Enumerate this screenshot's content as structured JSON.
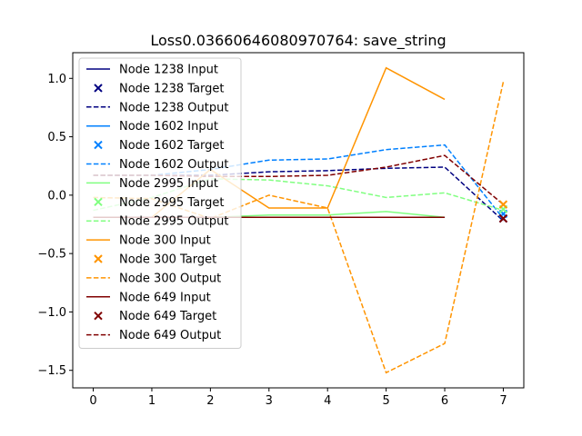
{
  "chart_data": {
    "type": "line",
    "title": "Loss0.03660646080970764: save_string",
    "xlabel": "",
    "ylabel": "",
    "xlim": [
      -0.35,
      7.35
    ],
    "ylim": [
      -1.65,
      1.22
    ],
    "xticks": [
      0,
      1,
      2,
      3,
      4,
      5,
      6,
      7
    ],
    "yticks": [
      -1.5,
      -1.0,
      -0.5,
      0.0,
      0.5,
      1.0
    ],
    "ytick_labels": [
      "−1.5",
      "−1.0",
      "−0.5",
      "0.0",
      "0.5",
      "1.0"
    ],
    "grid": false,
    "legend_position": "upper-left",
    "series": [
      {
        "name": "Node 1238",
        "color": "#000080",
        "input": [
          -0.19,
          -0.19,
          -0.19,
          -0.19,
          -0.19,
          -0.19,
          -0.19
        ],
        "target": [
          7,
          -0.2
        ],
        "output": [
          0.17,
          0.17,
          0.17,
          0.2,
          0.21,
          0.23,
          0.24,
          -0.22
        ]
      },
      {
        "name": "Node 1602",
        "color": "#0080ff",
        "input": [
          -0.19,
          -0.19,
          -0.19,
          -0.19,
          -0.19,
          -0.19,
          -0.19
        ],
        "target": [
          7,
          -0.16
        ],
        "output": [
          0.17,
          0.17,
          0.22,
          0.3,
          0.31,
          0.39,
          0.43,
          -0.2
        ]
      },
      {
        "name": "Node 2995",
        "color": "#80ff80",
        "input": [
          -0.19,
          -0.19,
          -0.19,
          -0.17,
          -0.17,
          -0.14,
          -0.19
        ],
        "target": [
          7,
          -0.12
        ],
        "output": [
          -0.13,
          -0.02,
          0.14,
          0.13,
          0.08,
          -0.02,
          0.02,
          -0.13
        ]
      },
      {
        "name": "Node 300",
        "color": "#ff9400",
        "input": [
          -0.19,
          -0.19,
          0.22,
          -0.11,
          -0.11,
          1.09,
          0.82
        ],
        "target": [
          7,
          -0.08
        ],
        "output": [
          -0.02,
          -0.03,
          -0.2,
          0.0,
          -0.11,
          -1.52,
          -1.27,
          0.97
        ]
      },
      {
        "name": "Node 649",
        "color": "#800000",
        "input": [
          -0.19,
          -0.19,
          -0.19,
          -0.19,
          -0.19,
          -0.19,
          -0.19
        ],
        "target": [
          7,
          -0.2
        ],
        "output": [
          0.17,
          0.17,
          0.16,
          0.16,
          0.17,
          0.24,
          0.34,
          -0.08
        ]
      }
    ],
    "legend_entries": [
      "Node 1238 Input",
      "Node 1238 Target",
      "Node 1238 Output",
      "Node 1602 Input",
      "Node 1602 Target",
      "Node 1602 Output",
      "Node 2995 Input",
      "Node 2995 Target",
      "Node 2995 Output",
      "Node 300 Input",
      "Node 300 Target",
      "Node 300 Output",
      "Node 649 Input",
      "Node 649 Target",
      "Node 649 Output"
    ]
  }
}
